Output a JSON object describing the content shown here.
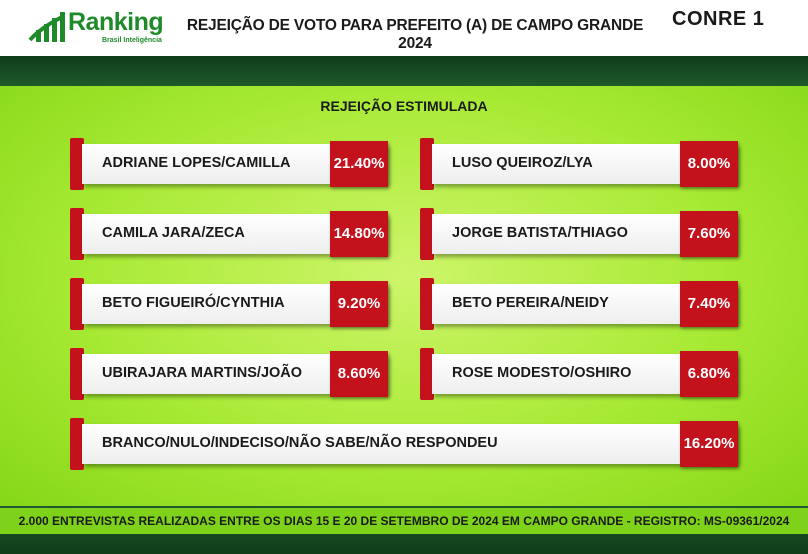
{
  "header": {
    "brand": "Ranking",
    "brand_sub": "Brasil Inteligência",
    "title": "REJEIÇÃO DE VOTO PARA PREFEITO (A) DE CAMPO GRANDE 2024",
    "right_logo": "CONRE 1"
  },
  "subtitle": "REJEIÇÃO ESTIMULADA",
  "chart_data": {
    "type": "table",
    "title": "REJEIÇÃO DE VOTO PARA PREFEITO (A) DE CAMPO GRANDE 2024",
    "subtitle": "REJEIÇÃO ESTIMULADA",
    "categories": [
      "ADRIANE LOPES/CAMILLA",
      "LUSO QUEIROZ/LYA",
      "CAMILA JARA/ZECA",
      "JORGE BATISTA/THIAGO",
      "BETO FIGUEIRÓ/CYNTHIA",
      "BETO PEREIRA/NEIDY",
      "UBIRAJARA MARTINS/JOÃO",
      "ROSE MODESTO/OSHIRO",
      "BRANCO/NULO/INDECISO/NÃO SABE/NÃO RESPONDEU"
    ],
    "values": [
      21.4,
      8.0,
      14.8,
      7.6,
      9.2,
      7.4,
      8.6,
      6.8,
      16.2
    ],
    "value_labels": [
      "21.40%",
      "8.00%",
      "14.80%",
      "7.60%",
      "9.20%",
      "7.40%",
      "8.60%",
      "6.80%",
      "16.20%"
    ]
  },
  "footer": "2.000 ENTREVISTAS REALIZADAS ENTRE OS DIAS 15 E 20 DE SETEMBRO DE 2024 EM CAMPO GRANDE - REGISTRO:  MS-09361/2024",
  "colors": {
    "accent_red": "#c4121c",
    "brand_green": "#1f8a2a",
    "background_green": "#a8ea35",
    "band_dark_green": "#0f3d1a"
  }
}
